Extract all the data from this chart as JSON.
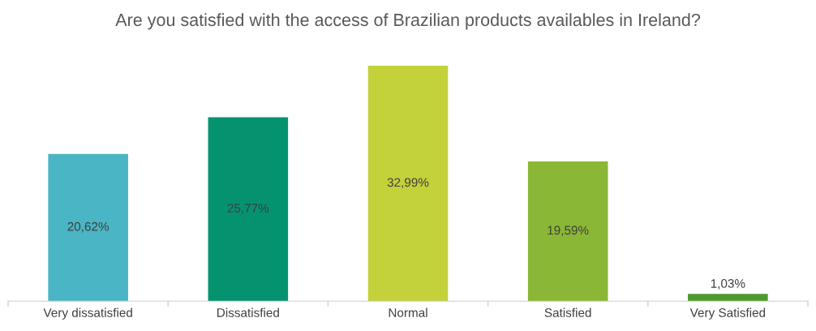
{
  "chart_data": {
    "type": "bar",
    "title": "Are you satisfied with the access of Brazilian products availables in Ireland?",
    "categories": [
      "Very dissatisfied",
      "Dissatisfied",
      "Normal",
      "Satisfied",
      "Very Satisfied"
    ],
    "values": [
      20.62,
      25.77,
      32.99,
      19.59,
      1.03
    ],
    "value_labels": [
      "20,62%",
      "25,77%",
      "32,99%",
      "19,59%",
      "1,03%"
    ],
    "colors": [
      "#4ab5c4",
      "#05936f",
      "#c3d13a",
      "#8ab735",
      "#4f9a2e"
    ],
    "grid": false,
    "legend": false
  }
}
